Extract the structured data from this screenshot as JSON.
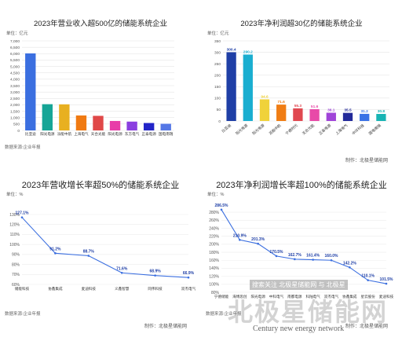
{
  "chart_data": [
    {
      "type": "bar",
      "title": "2023年营业收入超500亿的储能系统企业",
      "unit": "单位：亿元",
      "source": "数据来源:企业年报",
      "maker": "",
      "categories": [
        "比亚迪",
        "阳光电源",
        "派能中航",
        "上海电气",
        "天合光能",
        "阳光电源",
        "东方电气",
        "正泰电源",
        "国电南瑞"
      ],
      "values": [
        6020,
        2050,
        2040,
        1170,
        1140,
        740,
        690,
        580,
        520
      ],
      "yticks": [
        "0",
        "500",
        "1,000",
        "1,500",
        "2,000",
        "2,500",
        "3,000",
        "3,500",
        "4,000",
        "4,500",
        "5,000",
        "5,500",
        "6,000",
        "6,500",
        "7,000"
      ],
      "ylim": [
        0,
        7000
      ],
      "colors": [
        "#3b6fe0",
        "#16a596",
        "#e8b020",
        "#f07a12",
        "#e04848",
        "#e83ca8",
        "#8b3fe0",
        "#2224c8",
        "#5577e6"
      ]
    },
    {
      "type": "bar",
      "title": "2023年净利润超30亿的储能系统企业",
      "unit": "单位：亿元",
      "source": "",
      "maker": "制作：北极星储能网",
      "categories": [
        "比亚迪",
        "阳光电源",
        "阳光电源",
        "派能中航",
        "宁德时代",
        "天合光能",
        "正泰电源",
        "上海电气",
        "中环科技",
        "国电南瑞"
      ],
      "values": [
        300.4,
        290.2,
        94.6,
        71.6,
        55.3,
        51.6,
        36.1,
        35.5,
        31.2,
        30.8
      ],
      "labels": [
        "300.4",
        "290.2",
        "94.6",
        "71.6",
        "55.3",
        "51.6",
        "36.1",
        "35.5",
        "31.2",
        "30.8"
      ],
      "yticks": [
        "0",
        "50",
        "100",
        "150",
        "200",
        "250",
        "300",
        "350"
      ],
      "ylim": [
        0,
        350
      ],
      "colors": [
        "#1f3fa6",
        "#1aaed0",
        "#f0d23a",
        "#f07d14",
        "#e04850",
        "#e84aa8",
        "#a044d8",
        "#232a9a",
        "#3a72e6",
        "#18b4b4"
      ]
    },
    {
      "type": "line",
      "title": "2023年营收增长率超50%的储能系统企业",
      "unit": "单位：%",
      "source": "数据来源:企业年报",
      "maker": "制作：北极星储能网",
      "categories": [
        "储能科技",
        "协鑫集成",
        "麦迪科技",
        "义鑫智慧",
        "同伟科技",
        "双杰电气"
      ],
      "values": [
        127.1,
        91.2,
        88.7,
        71.6,
        68.9,
        66.9
      ],
      "labels": [
        "127.1%",
        "91.2%",
        "88.7%",
        "71.6%",
        "68.9%",
        "66.9%"
      ],
      "yticks": [
        "60%",
        "70%",
        "80%",
        "90%",
        "100%",
        "110%",
        "120%",
        "130%"
      ],
      "ylim": [
        60,
        130
      ],
      "color": "#3b6fe0"
    },
    {
      "type": "line",
      "title": "2023年净利润增长率超100%的储能系统企业",
      "unit": "单位：%",
      "source": "数据来源:企业年报",
      "maker": "制作：北极星储能网",
      "categories": [
        "宁德储能",
        "海博思创",
        "阳光电源",
        "中科电气",
        "南都电源",
        "科陆电气",
        "双杰电气",
        "协鑫集成",
        "星云股份",
        "麦迪科技"
      ],
      "values": [
        286.5,
        210.9,
        201.3,
        170.5,
        162.7,
        161.4,
        160,
        142.2,
        110.1,
        101.5
      ],
      "labels": [
        "286.5%",
        "210.9%",
        "201.3%",
        "170.5%",
        "162.7%",
        "161.4%",
        "160.0%",
        "142.2%",
        "110.1%",
        "101.5%"
      ],
      "yticks": [
        "80%",
        "100%",
        "120%",
        "140%",
        "160%",
        "180%",
        "200%",
        "220%",
        "240%",
        "260%",
        "280%"
      ],
      "ylim": [
        80,
        290
      ],
      "color": "#3b6fe0"
    }
  ],
  "watermark": {
    "banner": "搜索关注 北极星储能网 与 北极星",
    "brand": "北极星储能网",
    "english": "Century new energy network"
  }
}
